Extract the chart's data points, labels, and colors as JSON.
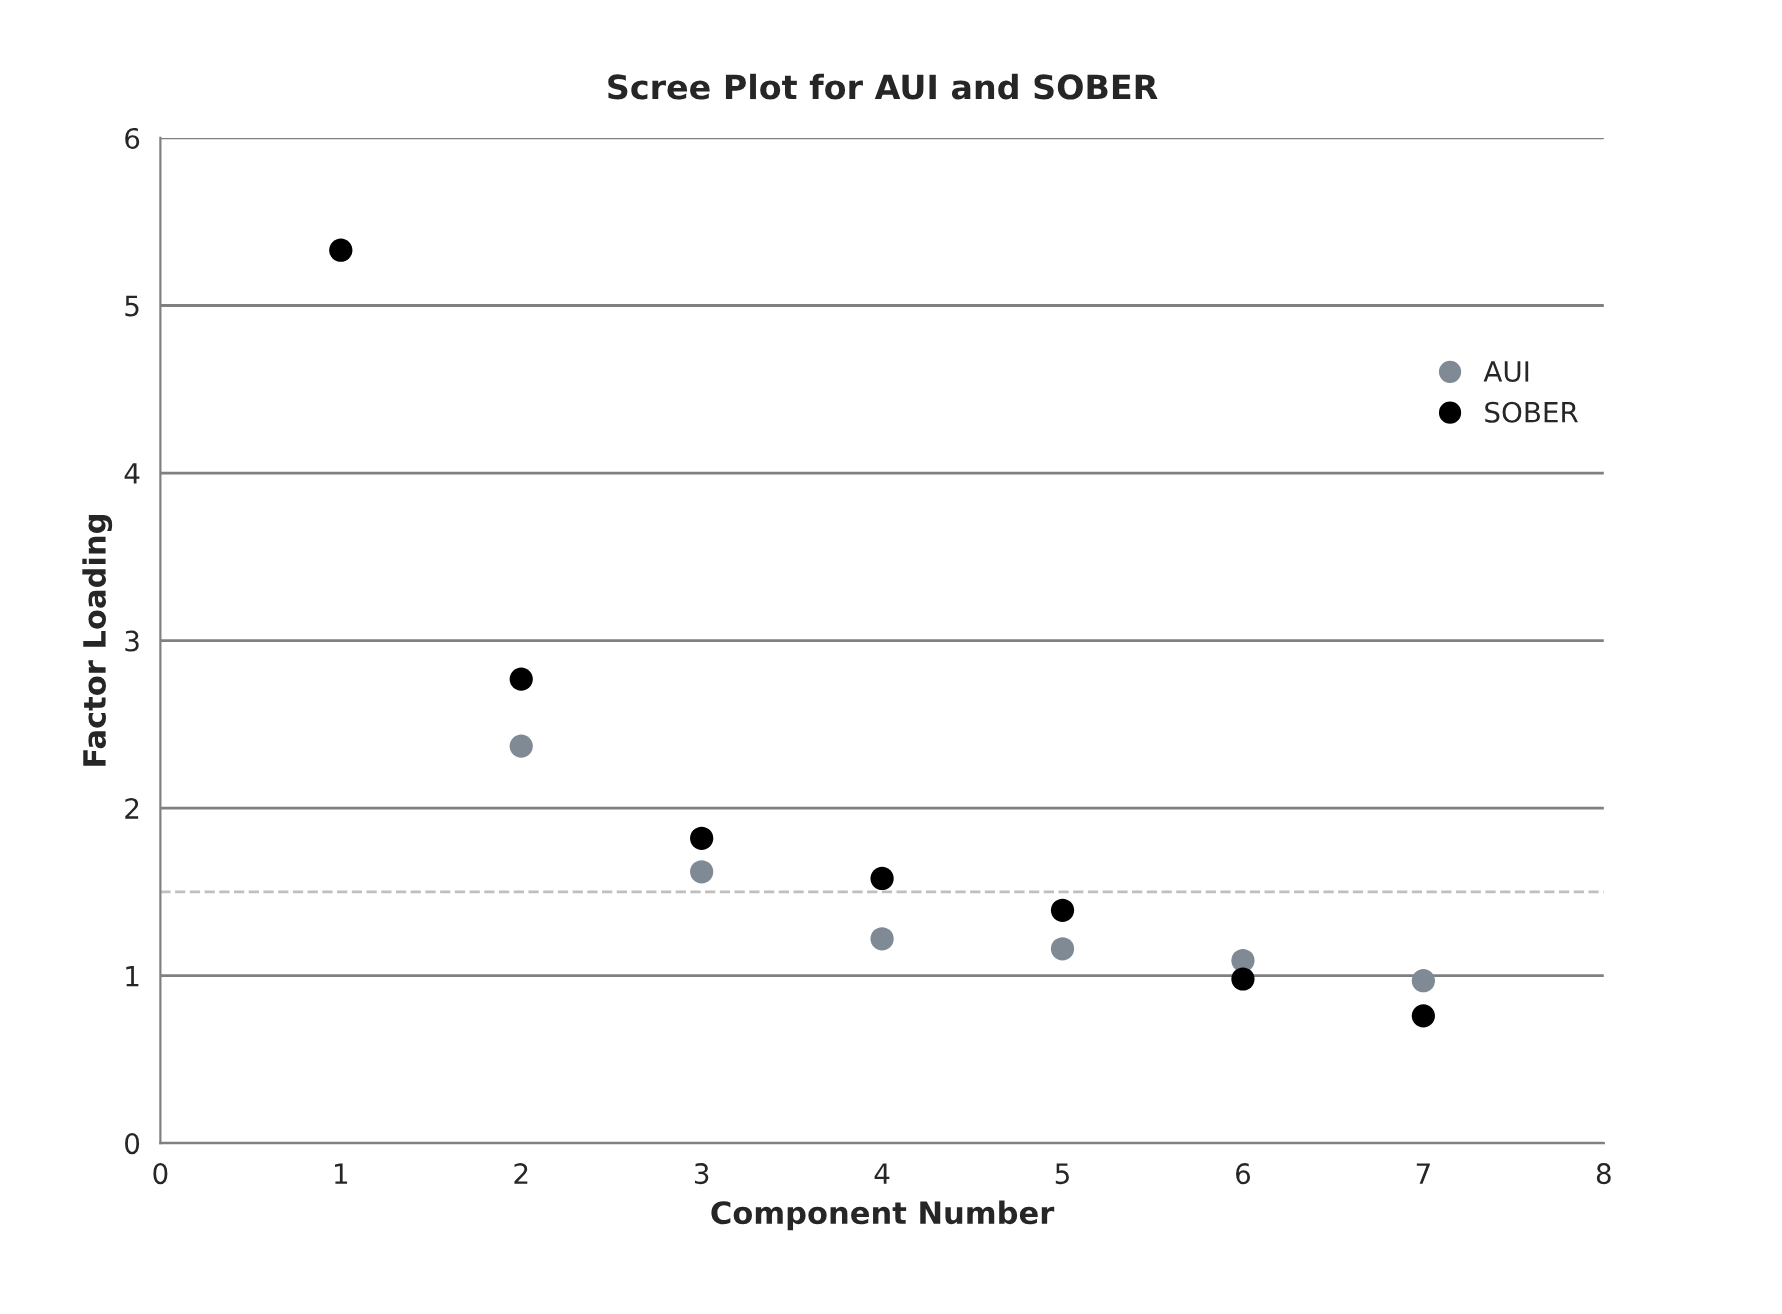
{
  "chart_data": {
    "type": "scatter",
    "title": "Scree Plot for AUI and SOBER",
    "xlabel": "Component Number",
    "ylabel": "Factor Loading",
    "x": [
      1,
      2,
      3,
      4,
      5,
      6,
      7
    ],
    "series": [
      {
        "name": "AUI",
        "color": "#7f8a95",
        "values": [
          null,
          2.37,
          1.62,
          1.22,
          1.16,
          1.09,
          0.97
        ]
      },
      {
        "name": "SOBER",
        "color": "#000000",
        "values": [
          5.33,
          2.77,
          1.82,
          1.58,
          1.39,
          0.98,
          0.76
        ]
      }
    ],
    "xlim": [
      0,
      8
    ],
    "xticks": [
      0,
      1,
      2,
      3,
      4,
      5,
      6,
      7,
      8
    ],
    "ylim": [
      0,
      6
    ],
    "yticks": [
      0,
      1,
      2,
      3,
      4,
      5,
      6
    ],
    "grid": "y",
    "legend": "right",
    "marker": "circle",
    "ref_lines": [
      {
        "axis": "y",
        "value": 1.5,
        "color": "#bfbfbf",
        "line_style": "dashed"
      }
    ]
  }
}
